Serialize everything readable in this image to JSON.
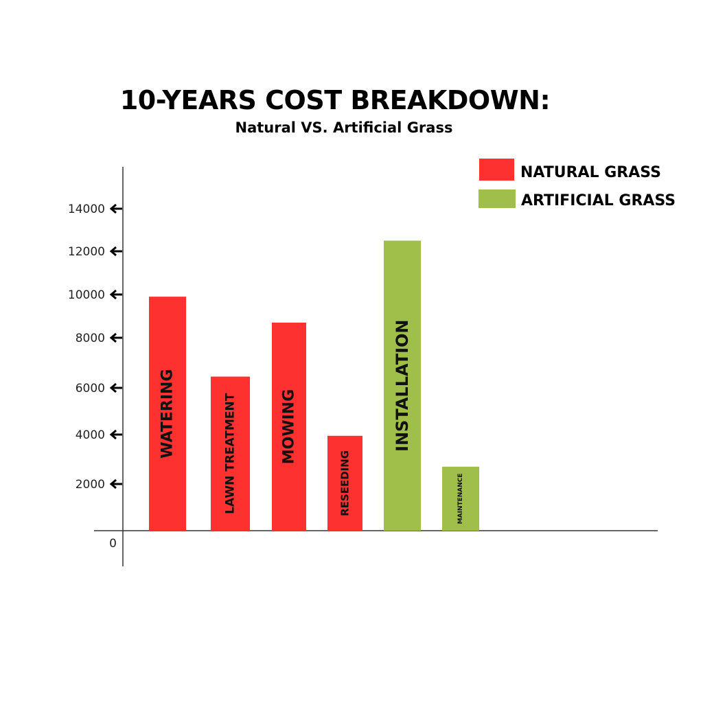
{
  "chart_data": {
    "type": "bar",
    "title": "10-YEARS COST BREAKDOWN:",
    "subtitle": "Natural VS. Artificial Grass",
    "xlabel": "",
    "ylabel": "",
    "ylim": [
      0,
      15000
    ],
    "y_ticks": [
      0,
      2000,
      4000,
      6000,
      8000,
      10000,
      12000,
      14000
    ],
    "grid": false,
    "legend_position": "top-right",
    "series": [
      {
        "name": "NATURAL GRASS",
        "color": "#fe3131"
      },
      {
        "name": "ARTIFICIAL GRASS",
        "color": "#9fbf4a"
      }
    ],
    "bars": [
      {
        "category": "WATERING",
        "series": "NATURAL GRASS",
        "value": 9900
      },
      {
        "category": "LAWN TREATMENT",
        "series": "NATURAL GRASS",
        "value": 6450
      },
      {
        "category": "MOWING",
        "series": "NATURAL GRASS",
        "value": 8700
      },
      {
        "category": "RESEEDING",
        "series": "NATURAL GRASS",
        "value": 3950
      },
      {
        "category": "INSTALLATION",
        "series": "ARTIFICIAL GRASS",
        "value": 12500
      },
      {
        "category": "MAINTENANCE",
        "series": "ARTIFICIAL GRASS",
        "value": 2700
      }
    ]
  }
}
